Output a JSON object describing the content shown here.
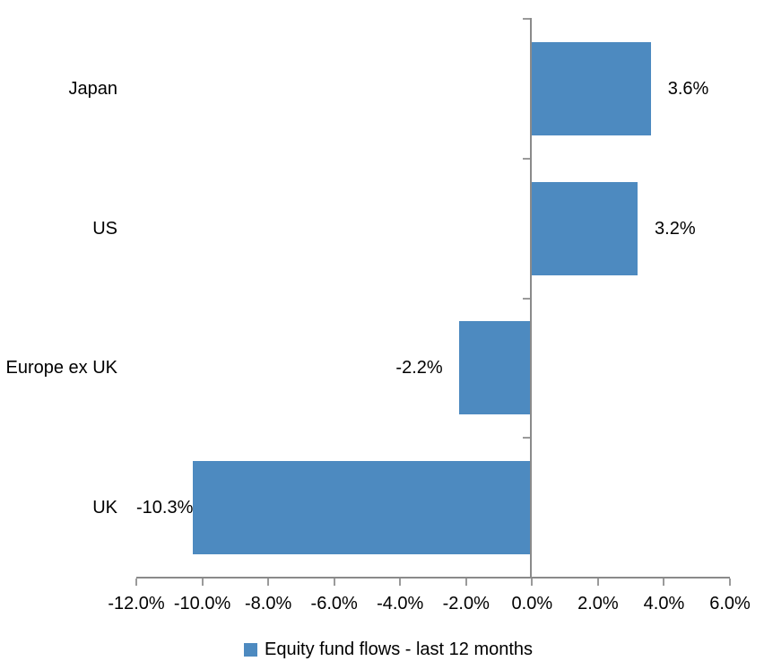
{
  "chart_data": {
    "type": "bar",
    "orientation": "horizontal",
    "categories": [
      "Japan",
      "US",
      "Europe ex UK",
      "UK"
    ],
    "values": [
      3.6,
      3.2,
      -2.2,
      -10.3
    ],
    "value_labels": [
      "3.6%",
      "3.2%",
      "-2.2%",
      "-10.3%"
    ],
    "series": [
      {
        "name": "Equity fund flows - last 12 months",
        "values": [
          3.6,
          3.2,
          -2.2,
          -10.3
        ]
      }
    ],
    "legend": [
      "Equity fund flows - last 12 months"
    ],
    "legend_position": "bottom",
    "title": "",
    "xlabel": "",
    "ylabel": "",
    "xlim": [
      -12,
      6
    ],
    "x_tick_values": [
      -12,
      -10,
      -8,
      -6,
      -4,
      -2,
      0,
      2,
      4,
      6
    ],
    "x_tick_labels": [
      "-12.0%",
      "-10.0%",
      "-8.0%",
      "-6.0%",
      "-4.0%",
      "-2.0%",
      "0.0%",
      "2.0%",
      "4.0%",
      "6.0%"
    ],
    "grid": false,
    "colors": {
      "bar": "#4D8AC0",
      "axis": "#8a8a8a",
      "tick": "#9a9a9a",
      "text": "#000000",
      "background": "#ffffff"
    }
  }
}
